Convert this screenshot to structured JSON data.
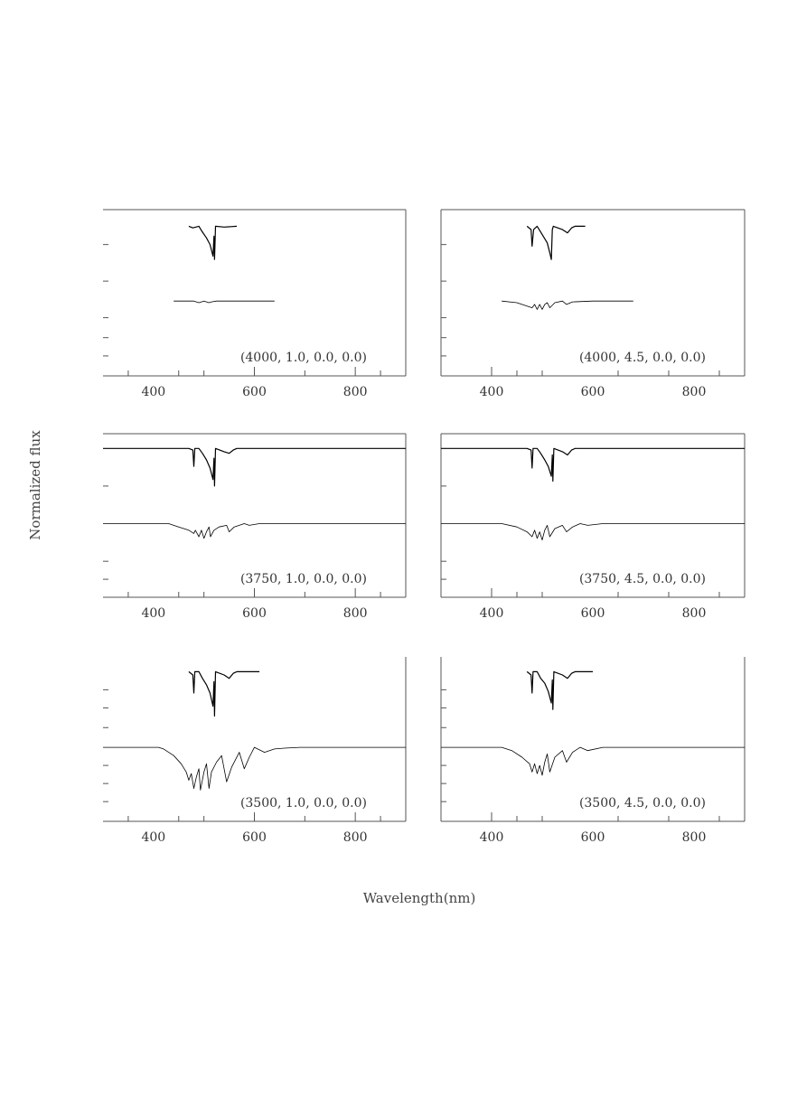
{
  "chart_data": {
    "type": "line",
    "xlabel": "Wavelength(nm)",
    "ylabel": "Normalized flux",
    "xlim": [
      300,
      900
    ],
    "ylim": [
      0,
      1
    ],
    "grid": false,
    "x_tick_labels": [
      "400",
      "600",
      "800"
    ],
    "line_color": "#000000",
    "panels": [
      {
        "label": "(4000, 1.0, 0.0, 0.0)",
        "series": [
          {
            "points": [
              [
                420,
                0.9
              ],
              null,
              [
                470,
                0.9
              ],
              [
                478,
                0.89
              ],
              [
                490,
                0.9
              ],
              [
                496,
                0.87
              ],
              [
                505,
                0.83
              ],
              [
                512,
                0.79
              ],
              [
                518,
                0.72
              ],
              [
                520,
                0.84
              ],
              [
                521,
                0.7
              ],
              [
                523,
                0.9
              ],
              [
                540,
                0.895
              ],
              [
                565,
                0.9
              ]
            ]
          },
          {
            "points": [
              [
                440,
                0.45
              ],
              [
                480,
                0.45
              ],
              [
                490,
                0.44
              ],
              [
                500,
                0.45
              ],
              [
                510,
                0.44
              ],
              [
                515,
                0.445
              ],
              [
                525,
                0.45
              ],
              [
                560,
                0.45
              ],
              [
                640,
                0.45
              ]
            ]
          }
        ]
      },
      {
        "label": "(4000, 4.5, 0.0, 0.0)",
        "series": [
          {
            "points": [
              [
                420,
                0.9
              ],
              null,
              [
                470,
                0.9
              ],
              [
                478,
                0.88
              ],
              [
                480,
                0.78
              ],
              [
                483,
                0.88
              ],
              [
                490,
                0.9
              ],
              [
                500,
                0.85
              ],
              [
                510,
                0.8
              ],
              [
                515,
                0.74
              ],
              [
                518,
                0.7
              ],
              [
                520,
                0.88
              ],
              [
                522,
                0.9
              ],
              [
                540,
                0.88
              ],
              [
                550,
                0.86
              ],
              [
                558,
                0.89
              ],
              [
                565,
                0.9
              ],
              [
                585,
                0.9
              ]
            ]
          },
          {
            "points": [
              [
                420,
                0.45
              ],
              [
                450,
                0.44
              ],
              [
                470,
                0.42
              ],
              [
                480,
                0.41
              ],
              [
                485,
                0.43
              ],
              [
                490,
                0.4
              ],
              [
                495,
                0.43
              ],
              [
                500,
                0.4
              ],
              [
                505,
                0.43
              ],
              [
                510,
                0.44
              ],
              [
                515,
                0.41
              ],
              [
                525,
                0.44
              ],
              [
                540,
                0.45
              ],
              [
                548,
                0.43
              ],
              [
                560,
                0.445
              ],
              [
                600,
                0.45
              ],
              [
                680,
                0.45
              ]
            ]
          }
        ]
      },
      {
        "label": "(3750, 1.0, 0.0, 0.0)",
        "series": [
          {
            "points": [
              [
                300,
                0.91
              ],
              [
                470,
                0.91
              ],
              [
                478,
                0.9
              ],
              [
                480,
                0.8
              ],
              [
                482,
                0.91
              ],
              [
                490,
                0.91
              ],
              [
                497,
                0.88
              ],
              [
                505,
                0.84
              ],
              [
                512,
                0.79
              ],
              [
                518,
                0.72
              ],
              [
                520,
                0.85
              ],
              [
                521,
                0.68
              ],
              [
                523,
                0.91
              ],
              [
                540,
                0.89
              ],
              [
                550,
                0.88
              ],
              [
                558,
                0.9
              ],
              [
                565,
                0.91
              ],
              [
                900,
                0.91
              ]
            ]
          },
          {
            "points": [
              [
                300,
                0.45
              ],
              [
                430,
                0.45
              ],
              [
                450,
                0.43
              ],
              [
                470,
                0.41
              ],
              [
                480,
                0.39
              ],
              [
                483,
                0.41
              ],
              [
                490,
                0.37
              ],
              [
                495,
                0.41
              ],
              [
                500,
                0.36
              ],
              [
                505,
                0.4
              ],
              [
                510,
                0.43
              ],
              [
                513,
                0.37
              ],
              [
                520,
                0.41
              ],
              [
                530,
                0.43
              ],
              [
                545,
                0.44
              ],
              [
                550,
                0.4
              ],
              [
                560,
                0.43
              ],
              [
                580,
                0.45
              ],
              [
                590,
                0.44
              ],
              [
                610,
                0.45
              ],
              [
                900,
                0.45
              ]
            ]
          }
        ]
      },
      {
        "label": "(3750, 4.5, 0.0, 0.0)",
        "series": [
          {
            "points": [
              [
                300,
                0.91
              ],
              [
                470,
                0.91
              ],
              [
                478,
                0.9
              ],
              [
                480,
                0.79
              ],
              [
                482,
                0.91
              ],
              [
                490,
                0.91
              ],
              [
                497,
                0.88
              ],
              [
                505,
                0.84
              ],
              [
                512,
                0.8
              ],
              [
                518,
                0.74
              ],
              [
                520,
                0.87
              ],
              [
                521,
                0.71
              ],
              [
                523,
                0.91
              ],
              [
                540,
                0.89
              ],
              [
                550,
                0.87
              ],
              [
                558,
                0.9
              ],
              [
                565,
                0.91
              ],
              [
                900,
                0.91
              ]
            ]
          },
          {
            "points": [
              [
                300,
                0.45
              ],
              [
                420,
                0.45
              ],
              [
                450,
                0.43
              ],
              [
                470,
                0.4
              ],
              [
                480,
                0.37
              ],
              [
                485,
                0.41
              ],
              [
                490,
                0.36
              ],
              [
                495,
                0.4
              ],
              [
                500,
                0.35
              ],
              [
                505,
                0.41
              ],
              [
                510,
                0.44
              ],
              [
                515,
                0.37
              ],
              [
                525,
                0.42
              ],
              [
                540,
                0.44
              ],
              [
                548,
                0.4
              ],
              [
                560,
                0.43
              ],
              [
                575,
                0.45
              ],
              [
                590,
                0.44
              ],
              [
                620,
                0.45
              ],
              [
                900,
                0.45
              ]
            ]
          }
        ]
      },
      {
        "label": "(3500, 1.0, 0.0, 0.0)",
        "series": [
          {
            "points": [
              [
                420,
                0.91
              ],
              null,
              [
                470,
                0.91
              ],
              [
                478,
                0.89
              ],
              [
                480,
                0.78
              ],
              [
                482,
                0.91
              ],
              [
                490,
                0.91
              ],
              [
                497,
                0.87
              ],
              [
                505,
                0.83
              ],
              [
                512,
                0.78
              ],
              [
                518,
                0.7
              ],
              [
                520,
                0.85
              ],
              [
                521,
                0.64
              ],
              [
                523,
                0.91
              ],
              [
                540,
                0.89
              ],
              [
                550,
                0.87
              ],
              [
                558,
                0.9
              ],
              [
                565,
                0.91
              ],
              [
                610,
                0.91
              ]
            ]
          },
          {
            "points": [
              [
                300,
                0.45
              ],
              [
                410,
                0.45
              ],
              [
                420,
                0.44
              ],
              [
                440,
                0.4
              ],
              [
                455,
                0.35
              ],
              [
                465,
                0.3
              ],
              [
                470,
                0.25
              ],
              [
                475,
                0.29
              ],
              [
                480,
                0.2
              ],
              [
                485,
                0.27
              ],
              [
                490,
                0.32
              ],
              [
                493,
                0.19
              ],
              [
                500,
                0.3
              ],
              [
                505,
                0.35
              ],
              [
                510,
                0.2
              ],
              [
                515,
                0.3
              ],
              [
                525,
                0.36
              ],
              [
                535,
                0.4
              ],
              [
                545,
                0.24
              ],
              [
                555,
                0.33
              ],
              [
                570,
                0.42
              ],
              [
                580,
                0.32
              ],
              [
                590,
                0.39
              ],
              [
                600,
                0.45
              ],
              [
                620,
                0.42
              ],
              [
                640,
                0.44
              ],
              [
                660,
                0.445
              ],
              [
                690,
                0.45
              ],
              [
                900,
                0.45
              ]
            ]
          }
        ]
      },
      {
        "label": "(3500, 4.5, 0.0, 0.0)",
        "series": [
          {
            "points": [
              [
                420,
                0.91
              ],
              null,
              [
                470,
                0.91
              ],
              [
                478,
                0.89
              ],
              [
                480,
                0.78
              ],
              [
                482,
                0.91
              ],
              [
                490,
                0.91
              ],
              [
                497,
                0.87
              ],
              [
                505,
                0.84
              ],
              [
                512,
                0.79
              ],
              [
                518,
                0.72
              ],
              [
                520,
                0.86
              ],
              [
                521,
                0.68
              ],
              [
                523,
                0.91
              ],
              [
                540,
                0.89
              ],
              [
                550,
                0.87
              ],
              [
                558,
                0.9
              ],
              [
                565,
                0.91
              ],
              [
                600,
                0.91
              ]
            ]
          },
          {
            "points": [
              [
                300,
                0.45
              ],
              [
                420,
                0.45
              ],
              [
                440,
                0.43
              ],
              [
                460,
                0.39
              ],
              [
                475,
                0.35
              ],
              [
                480,
                0.3
              ],
              [
                485,
                0.35
              ],
              [
                490,
                0.29
              ],
              [
                495,
                0.34
              ],
              [
                500,
                0.28
              ],
              [
                505,
                0.36
              ],
              [
                510,
                0.41
              ],
              [
                515,
                0.3
              ],
              [
                525,
                0.39
              ],
              [
                540,
                0.43
              ],
              [
                548,
                0.36
              ],
              [
                560,
                0.42
              ],
              [
                575,
                0.45
              ],
              [
                590,
                0.43
              ],
              [
                620,
                0.45
              ],
              [
                900,
                0.45
              ]
            ]
          }
        ]
      }
    ]
  }
}
